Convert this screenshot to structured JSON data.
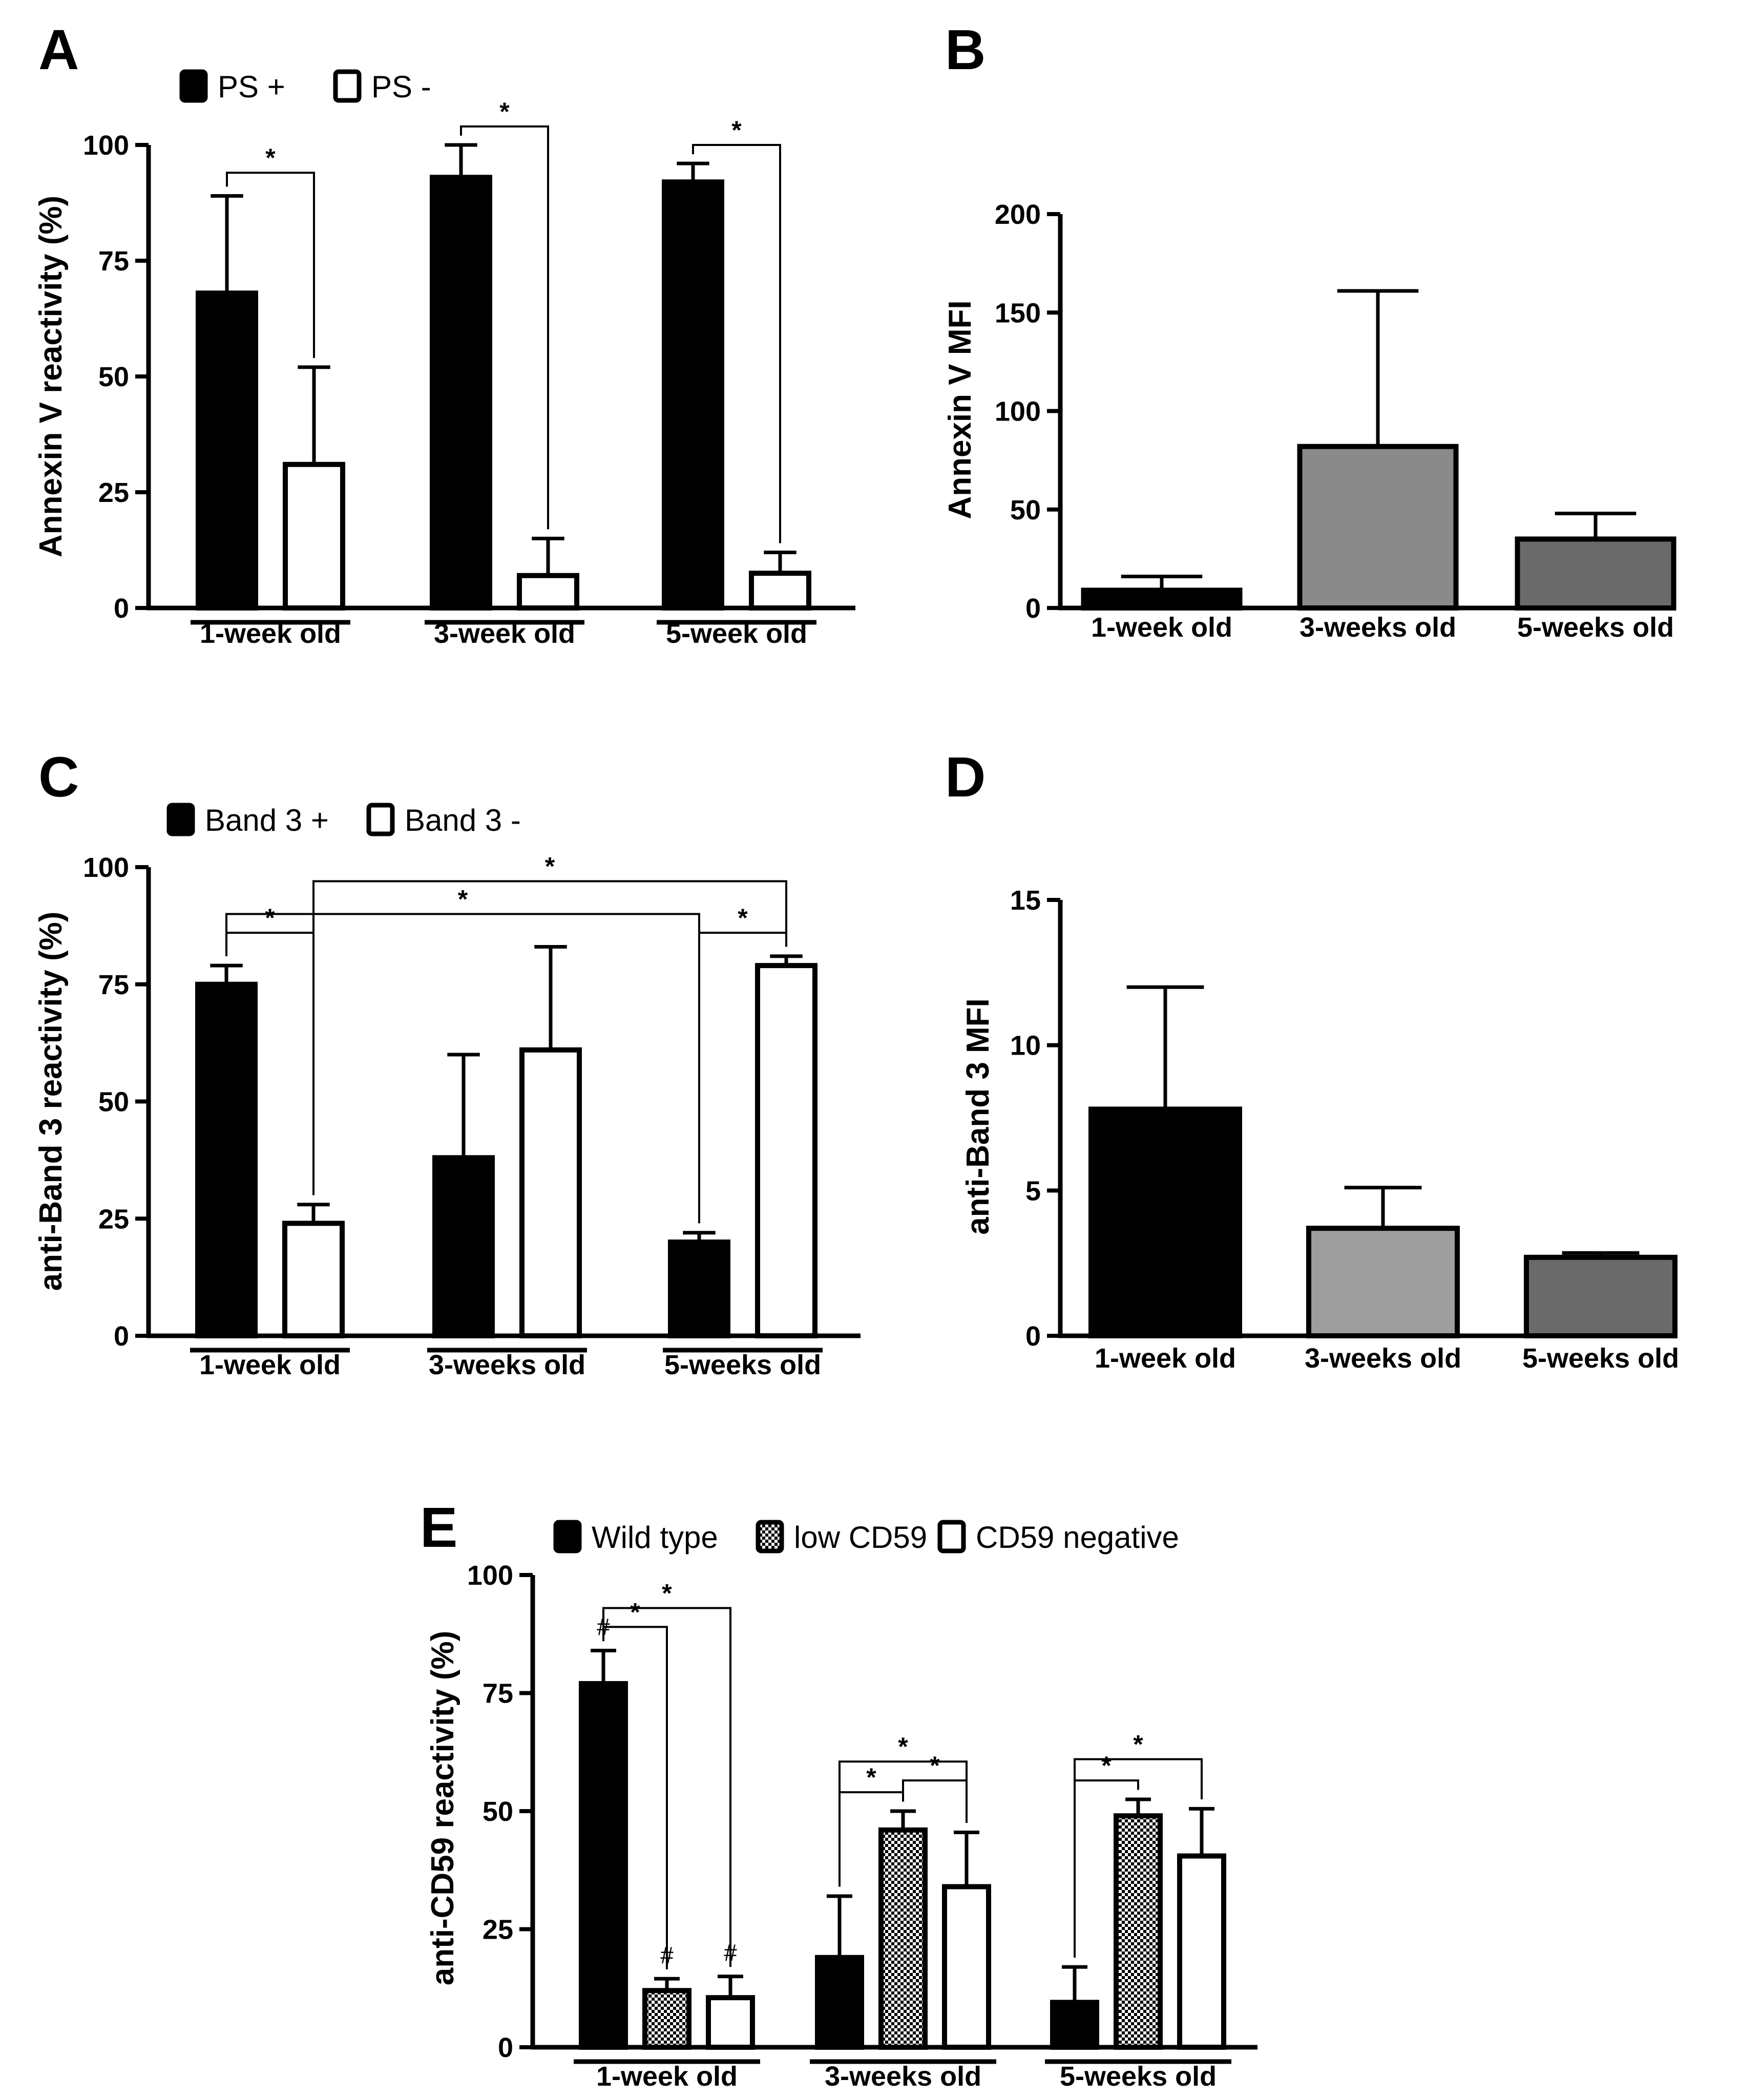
{
  "colors": {
    "black": "#000000",
    "white": "#ffffff",
    "grey_light": "#9e9e9e",
    "grey_mid": "#8a8a8a",
    "grey_dark": "#6a6a6a"
  },
  "chart_data": [
    {
      "id": "A",
      "panel_label": "A",
      "type": "bar",
      "ylabel": "Annexin V reactivity (%)",
      "ylim": [
        0,
        100
      ],
      "yticks": [
        0,
        25,
        50,
        75,
        100
      ],
      "yticks_text": [
        "0",
        "25",
        "50",
        "75",
        "100"
      ],
      "categories": [
        "1-week old",
        "3-week old",
        "5-week old"
      ],
      "series": [
        {
          "name": "PS +",
          "fill": "solid",
          "values": [
            68,
            93,
            92
          ],
          "errors": [
            21,
            7,
            4
          ]
        },
        {
          "name": "PS -",
          "fill": "open",
          "values": [
            31,
            7,
            7.5
          ],
          "errors": [
            21,
            8,
            4.5
          ]
        }
      ],
      "legend": [
        "PS +",
        "PS -"
      ],
      "significance": [
        {
          "label": "*",
          "from": [
            0,
            0
          ],
          "to": [
            0,
            1
          ],
          "y": 94
        },
        {
          "label": "*",
          "from": [
            1,
            0
          ],
          "to": [
            1,
            1
          ],
          "y": 104
        },
        {
          "label": "*",
          "from": [
            2,
            0
          ],
          "to": [
            2,
            1
          ],
          "y": 100
        }
      ]
    },
    {
      "id": "B",
      "panel_label": "B",
      "type": "bar",
      "ylabel": "Annexin V MFI",
      "ylim": [
        0,
        200
      ],
      "yticks": [
        0,
        50,
        100,
        150,
        200
      ],
      "yticks_text": [
        "0",
        "50",
        "100",
        "150",
        "200"
      ],
      "categories": [
        "1-week old",
        "3-weeks old",
        "5-weeks old"
      ],
      "values": [
        9,
        82,
        35
      ],
      "errors": [
        7,
        79,
        13
      ],
      "bar_colors": [
        "#000000",
        "#8a8a8a",
        "#6a6a6a"
      ]
    },
    {
      "id": "C",
      "panel_label": "C",
      "type": "bar",
      "ylabel": "anti-Band 3 reactivity (%)",
      "ylim": [
        0,
        100
      ],
      "yticks": [
        0,
        25,
        50,
        75,
        100
      ],
      "yticks_text": [
        "0",
        "25",
        "50",
        "75",
        "100"
      ],
      "categories": [
        "1-week old",
        "3-weeks old",
        "5-weeks old"
      ],
      "series": [
        {
          "name": "Band 3 +",
          "fill": "solid",
          "values": [
            75,
            38,
            20
          ],
          "errors": [
            4,
            22,
            2
          ]
        },
        {
          "name": "Band 3 -",
          "fill": "open",
          "values": [
            24,
            61,
            79
          ],
          "errors": [
            4,
            22,
            2
          ]
        }
      ],
      "legend": [
        "Band 3 +",
        "Band 3 -"
      ],
      "significance": [
        {
          "label": "*",
          "from": [
            0,
            0
          ],
          "to": [
            0,
            1
          ],
          "y": 86
        },
        {
          "label": "*",
          "from": [
            0,
            0
          ],
          "to": [
            2,
            0
          ],
          "y": 90,
          "drop_to": 37
        },
        {
          "label": "*",
          "from": [
            0,
            1
          ],
          "to": [
            2,
            1
          ],
          "y": 97
        },
        {
          "label": "*",
          "from": [
            2,
            0
          ],
          "to": [
            2,
            1
          ],
          "y": 86
        }
      ]
    },
    {
      "id": "D",
      "panel_label": "D",
      "type": "bar",
      "ylabel": "anti-Band 3 MFI",
      "ylim": [
        0,
        15
      ],
      "yticks": [
        0,
        5,
        10,
        15
      ],
      "yticks_text": [
        "0",
        "5",
        "10",
        "15"
      ],
      "categories": [
        "1-week old",
        "3-weeks old",
        "5-weeks old"
      ],
      "values": [
        7.8,
        3.7,
        2.7
      ],
      "errors": [
        4.2,
        1.4,
        0.15
      ],
      "bar_colors": [
        "#000000",
        "#9e9e9e",
        "#6a6a6a"
      ]
    },
    {
      "id": "E",
      "panel_label": "E",
      "type": "bar",
      "ylabel": "anti-CD59 reactivity (%)",
      "ylim": [
        0,
        100
      ],
      "yticks": [
        0,
        25,
        50,
        75,
        100
      ],
      "yticks_text": [
        "0",
        "25",
        "50",
        "75",
        "100"
      ],
      "categories": [
        "1-week old",
        "3-weeks old",
        "5-weeks old"
      ],
      "series": [
        {
          "name": "Wild type",
          "fill": "solid",
          "values": [
            77,
            19,
            9.5
          ],
          "errors": [
            7,
            13,
            7.5
          ]
        },
        {
          "name": "low CD59",
          "fill": "checker",
          "values": [
            12,
            46,
            49
          ],
          "errors": [
            2.5,
            4,
            3.5
          ]
        },
        {
          "name": "CD59 negative",
          "fill": "open",
          "values": [
            10.5,
            34,
            40.5
          ],
          "errors": [
            4.5,
            11.5,
            10
          ]
        }
      ],
      "legend": [
        "Wild type",
        "low CD59",
        "CD59 negative"
      ],
      "hash_marks": [
        {
          "label": "#",
          "group": 0,
          "series": 0
        },
        {
          "label": "#",
          "group": 0,
          "series": 1
        },
        {
          "label": "#",
          "group": 0,
          "series": 2
        }
      ],
      "significance": [
        {
          "label": "*",
          "from": [
            0,
            0
          ],
          "to": [
            0,
            1
          ],
          "y": 89
        },
        {
          "label": "*",
          "from": [
            0,
            0
          ],
          "to": [
            0,
            2
          ],
          "y": 93
        },
        {
          "label": "*",
          "from": [
            1,
            0
          ],
          "to": [
            1,
            1
          ],
          "y": 54
        },
        {
          "label": "*",
          "from": [
            1,
            1
          ],
          "to": [
            1,
            2
          ],
          "y": 56.5
        },
        {
          "label": "*",
          "from": [
            1,
            0
          ],
          "to": [
            1,
            2
          ],
          "y": 60.5
        },
        {
          "label": "*",
          "from": [
            2,
            0
          ],
          "to": [
            2,
            1
          ],
          "y": 56.5
        },
        {
          "label": "*",
          "from": [
            2,
            0
          ],
          "to": [
            2,
            2
          ],
          "y": 61
        }
      ]
    }
  ]
}
